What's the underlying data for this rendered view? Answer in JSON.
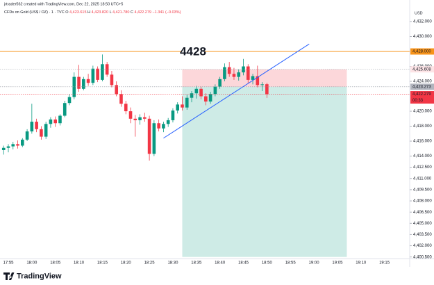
{
  "header": {
    "creator": "jrtrader562 created with TradingView.com, Dec 22, 2025 18:50 UTC+5"
  },
  "legend": {
    "symbol": "CFDs on Gold (US$ / OZ) · 1 · TVC",
    "items": [
      {
        "key": "O",
        "value": "4,423.615"
      },
      {
        "key": "H",
        "value": "4,423.820"
      },
      {
        "key": "L",
        "value": "4,421.780"
      },
      {
        "key": "C",
        "value": "4,422.279"
      }
    ],
    "change": "−1.341 (−0.03%)"
  },
  "chart_data": {
    "type": "candlestick",
    "x": [
      "17:54",
      "17:55",
      "17:56",
      "17:57",
      "17:58",
      "17:59",
      "18:00",
      "18:01",
      "18:02",
      "18:03",
      "18:04",
      "18:05",
      "18:06",
      "18:07",
      "18:08",
      "18:09",
      "18:10",
      "18:11",
      "18:12",
      "18:13",
      "18:14",
      "18:15",
      "18:16",
      "18:17",
      "18:18",
      "18:19",
      "18:20",
      "18:21",
      "18:22",
      "18:23",
      "18:24",
      "18:25",
      "18:26",
      "18:27",
      "18:28",
      "18:29",
      "18:30",
      "18:31",
      "18:32",
      "18:33",
      "18:34",
      "18:35",
      "18:36",
      "18:37",
      "18:38",
      "18:39",
      "18:40",
      "18:41",
      "18:42",
      "18:43",
      "18:44",
      "18:45",
      "18:46",
      "18:47",
      "18:48",
      "18:49",
      "18:50"
    ],
    "open": [
      4414.8,
      4415.1,
      4415.3,
      4415.6,
      4415.4,
      4416.2,
      4417.3,
      4418.6,
      4417.6,
      4416.6,
      4418.3,
      4418.9,
      4418.4,
      4419.4,
      4421.1,
      4421.9,
      4424.6,
      4423.0,
      4424.3,
      4423.8,
      4425.7,
      4424.2,
      4426.3,
      4424.9,
      4423.5,
      4422.3,
      4421.0,
      4420.0,
      4419.0,
      4418.8,
      4419.2,
      4419.0,
      4414.3,
      4418.4,
      4417.7,
      4418.3,
      4418.8,
      4420.1,
      4420.9,
      4420.5,
      4421.8,
      4422.4,
      4423.0,
      4422.0,
      4421.3,
      4422.3,
      4423.3,
      4424.3,
      4425.9,
      4425.0,
      4424.6,
      4425.2,
      4426.0,
      4424.2,
      4424.7,
      4423.5,
      4423.615
    ],
    "high": [
      4415.4,
      4415.6,
      4415.9,
      4416.1,
      4416.4,
      4417.6,
      4421.0,
      4419.0,
      4418.0,
      4418.6,
      4419.2,
      4419.3,
      4419.6,
      4421.4,
      4422.3,
      4425.2,
      4426.2,
      4424.6,
      4425.0,
      4426.1,
      4426.0,
      4427.6,
      4426.6,
      4425.4,
      4424.0,
      4422.8,
      4421.4,
      4420.5,
      4419.5,
      4419.6,
      4419.8,
      4419.4,
      4418.8,
      4418.9,
      4418.6,
      4419.1,
      4420.4,
      4421.2,
      4422.0,
      4422.2,
      4422.7,
      4423.4,
      4423.3,
      4422.4,
      4422.6,
      4423.6,
      4424.6,
      4426.4,
      4426.6,
      4425.8,
      4425.6,
      4427.0,
      4426.3,
      4425.0,
      4426.1,
      4423.9,
      4423.82
    ],
    "low": [
      4414.2,
      4414.5,
      4414.9,
      4415.0,
      4415.2,
      4416.0,
      4417.0,
      4417.2,
      4416.2,
      4416.3,
      4417.8,
      4417.9,
      4418.1,
      4419.2,
      4420.8,
      4421.6,
      4422.6,
      4422.8,
      4423.4,
      4423.5,
      4423.9,
      4424.0,
      4424.6,
      4423.2,
      4422.0,
      4420.6,
      4419.6,
      4418.4,
      4416.6,
      4418.2,
      4418.6,
      4413.4,
      4414.0,
      4417.3,
      4417.2,
      4417.9,
      4418.5,
      4419.7,
      4420.1,
      4420.2,
      4421.2,
      4421.7,
      4421.6,
      4420.8,
      4421.0,
      4422.0,
      4423.0,
      4424.0,
      4424.6,
      4424.2,
      4424.1,
      4424.8,
      4423.8,
      4423.6,
      4423.2,
      4422.7,
      4421.78
    ],
    "close": [
      4415.1,
      4415.3,
      4415.6,
      4415.4,
      4416.2,
      4417.3,
      4418.6,
      4417.6,
      4416.6,
      4418.3,
      4418.9,
      4418.4,
      4419.4,
      4421.1,
      4421.9,
      4424.6,
      4423.0,
      4424.3,
      4423.8,
      4425.7,
      4424.2,
      4426.3,
      4424.9,
      4423.5,
      4422.3,
      4421.0,
      4420.0,
      4419.0,
      4418.8,
      4419.2,
      4419.0,
      4414.3,
      4418.4,
      4417.7,
      4418.3,
      4418.8,
      4420.1,
      4420.9,
      4420.5,
      4421.8,
      4422.4,
      4423.0,
      4422.0,
      4421.3,
      4422.3,
      4423.3,
      4424.3,
      4425.9,
      4425.0,
      4424.6,
      4425.2,
      4426.0,
      4424.2,
      4424.7,
      4423.5,
      4423.6,
      4422.279
    ],
    "up_color": "#089981",
    "down_color": "#f23645",
    "ylim": [
      4400.47,
      4433.77
    ],
    "yticks": [
      {
        "value": 4432,
        "label": "4,432.000"
      },
      {
        "value": 4430,
        "label": "4,430.000"
      },
      {
        "value": 4426,
        "label": "4,426.000"
      },
      {
        "value": 4424,
        "label": "4,424.000"
      },
      {
        "value": 4420,
        "label": "4,420.000"
      },
      {
        "value": 4418,
        "label": "4,418.000"
      },
      {
        "value": 4416,
        "label": "4,416.000"
      },
      {
        "value": 4414,
        "label": "4,414.000"
      },
      {
        "value": 4412.5,
        "label": "4,412.500"
      },
      {
        "value": 4411,
        "label": "4,411.000"
      },
      {
        "value": 4409.5,
        "label": "4,409.500"
      },
      {
        "value": 4408,
        "label": "4,408.000"
      },
      {
        "value": 4406.5,
        "label": "4,406.500"
      },
      {
        "value": 4405,
        "label": "4,405.000"
      },
      {
        "value": 4403.5,
        "label": "4,403.500"
      },
      {
        "value": 4402,
        "label": "4,402.000"
      },
      {
        "value": 4400.5,
        "label": "4,400.500"
      }
    ],
    "xticks": [
      "17:55",
      "18:00",
      "18:05",
      "18:10",
      "18:15",
      "18:20",
      "18:25",
      "18:30",
      "18:35",
      "18:40",
      "18:45",
      "18:50",
      "18:55",
      "19:00",
      "19:05",
      "19:10",
      "19:15"
    ],
    "currency": "USD",
    "hlines": [
      {
        "value": 4428,
        "label": "4428",
        "axis_label": "4,428.000",
        "color": "#f7931a"
      }
    ],
    "trendline": {
      "x": [
        "18:28",
        "18:59"
      ],
      "y": [
        4416.4,
        4429.0
      ],
      "color": "#2962ff"
    },
    "position": {
      "x": [
        "18:32",
        "19:07"
      ],
      "entry": 4423.273,
      "stop": 4425.608,
      "target": 4400.5
    },
    "price_labels": [
      {
        "value": 4425.608,
        "label": "4,425.608",
        "style": "stop"
      },
      {
        "value": 4423.273,
        "label": "4,423.273",
        "style": "entry"
      },
      {
        "value": 4422.279,
        "label": "4,422.279",
        "style": "last"
      }
    ],
    "countdown": "00:33"
  },
  "footer": {
    "brand": "TradingView"
  }
}
